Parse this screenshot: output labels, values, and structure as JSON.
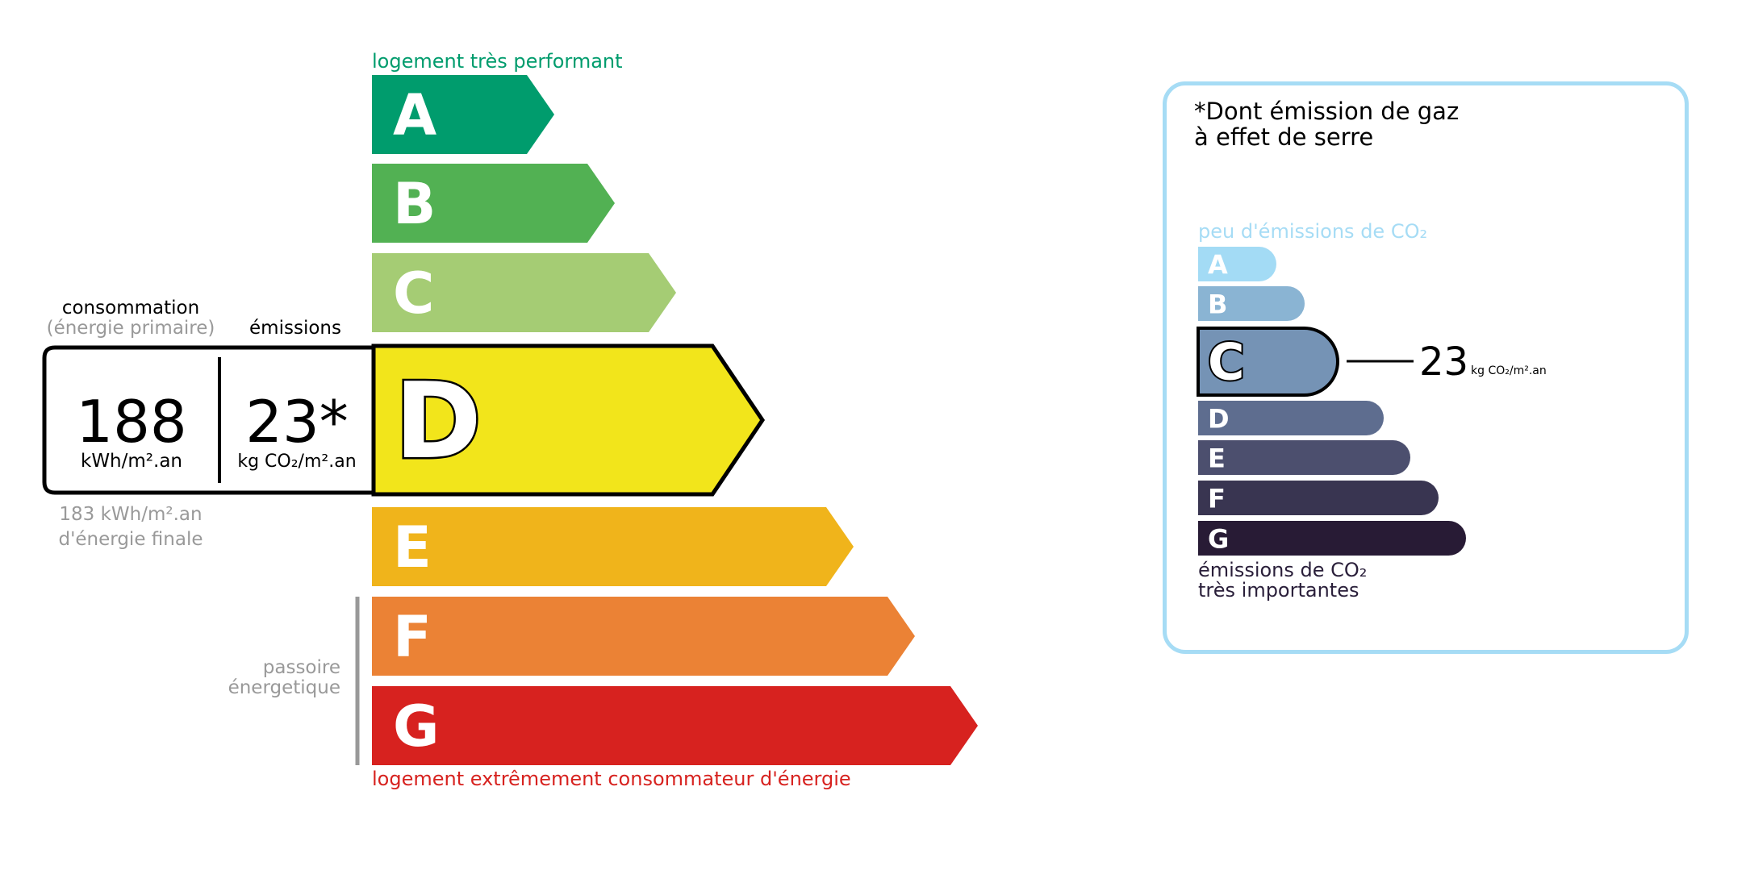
{
  "energy": {
    "top_label": "logement très performant",
    "bottom_label": "logement extrêmement consommateur d'énergie",
    "passoire": [
      "passoire",
      "énergetique"
    ],
    "classes": [
      {
        "letter": "A",
        "color": "#009c6d"
      },
      {
        "letter": "B",
        "color": "#52b153"
      },
      {
        "letter": "C",
        "color": "#a5cc74"
      },
      {
        "letter": "D",
        "color": "#f2e51b"
      },
      {
        "letter": "E",
        "color": "#f0b41b"
      },
      {
        "letter": "F",
        "color": "#eb8235"
      },
      {
        "letter": "G",
        "color": "#d7221f"
      }
    ],
    "current_class": "D",
    "consumption_label": "consommation",
    "consumption_sub": "(énergie primaire)",
    "emissions_label": "émissions",
    "consumption_value": "188",
    "consumption_unit": "kWh/m².an",
    "emissions_value": "23*",
    "emissions_unit": "kg CO₂/m².an",
    "final_value": "183 kWh/m².an",
    "final_label": "d'énergie finale"
  },
  "ges": {
    "title_line1": "*Dont émission de gaz",
    "title_line2": "à effet de serre",
    "top_label": "peu d'émissions de CO₂",
    "bottom_line1": "émissions de CO₂",
    "bottom_line2": "très importantes",
    "classes": [
      {
        "letter": "A",
        "color": "#a3dbf5"
      },
      {
        "letter": "B",
        "color": "#8ab4d3"
      },
      {
        "letter": "C",
        "color": "#7593b5"
      },
      {
        "letter": "D",
        "color": "#5e6d8f"
      },
      {
        "letter": "E",
        "color": "#4c4f6e"
      },
      {
        "letter": "F",
        "color": "#393551"
      },
      {
        "letter": "G",
        "color": "#281b35"
      }
    ],
    "current_class": "C",
    "value": "23",
    "unit": "kg CO₂/m².an"
  }
}
